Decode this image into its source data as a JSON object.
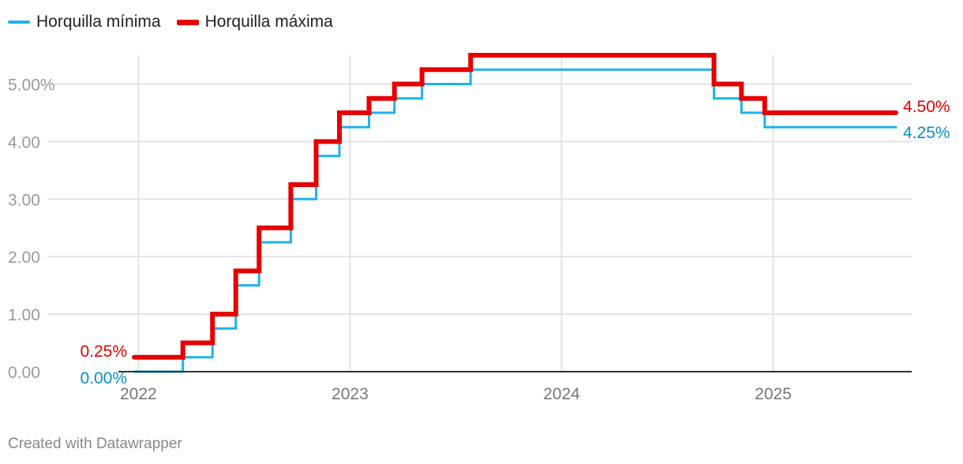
{
  "colors": {
    "min": "#1cb4ea",
    "max": "#e60000",
    "min_label": "#0a8fc8",
    "max_label": "#e60000",
    "grid": "#e3e3e3",
    "axis": "#333333",
    "tick": "#9a9a9a"
  },
  "footer": "Created with Datawrapper",
  "chart_data": {
    "type": "line",
    "step": true,
    "title": "",
    "xlabel": "",
    "ylabel": "",
    "xlim": [
      2021.98,
      2025.58
    ],
    "ylim": [
      0,
      5.5
    ],
    "y_ticks": [
      {
        "value": 0,
        "label": "0.00"
      },
      {
        "value": 1,
        "label": "1.00"
      },
      {
        "value": 2,
        "label": "2.00"
      },
      {
        "value": 3,
        "label": "3.00"
      },
      {
        "value": 4,
        "label": "4.00"
      },
      {
        "value": 5,
        "label": "5.00%"
      }
    ],
    "x_ticks": [
      {
        "value": 2022,
        "label": "2022"
      },
      {
        "value": 2023,
        "label": "2023"
      },
      {
        "value": 2024,
        "label": "2024"
      },
      {
        "value": 2025,
        "label": "2025"
      }
    ],
    "legend_position": "top-left",
    "grid": true,
    "series": [
      {
        "name": "Horquilla mínima",
        "key": "min",
        "start_label": "0.00%",
        "end_label": "4.25%",
        "points": [
          [
            2021.98,
            0.0
          ],
          [
            2022.21,
            0.25
          ],
          [
            2022.35,
            0.75
          ],
          [
            2022.46,
            1.5
          ],
          [
            2022.57,
            2.25
          ],
          [
            2022.72,
            3.0
          ],
          [
            2022.84,
            3.75
          ],
          [
            2022.95,
            4.25
          ],
          [
            2023.09,
            4.5
          ],
          [
            2023.21,
            4.75
          ],
          [
            2023.34,
            5.0
          ],
          [
            2023.57,
            5.25
          ],
          [
            2024.72,
            4.75
          ],
          [
            2024.85,
            4.5
          ],
          [
            2024.96,
            4.25
          ],
          [
            2025.58,
            4.25
          ]
        ]
      },
      {
        "name": "Horquilla máxima",
        "key": "max",
        "start_label": "0.25%",
        "end_label": "4.50%",
        "points": [
          [
            2021.98,
            0.25
          ],
          [
            2022.21,
            0.5
          ],
          [
            2022.35,
            1.0
          ],
          [
            2022.46,
            1.75
          ],
          [
            2022.57,
            2.5
          ],
          [
            2022.72,
            3.25
          ],
          [
            2022.84,
            4.0
          ],
          [
            2022.95,
            4.5
          ],
          [
            2023.09,
            4.75
          ],
          [
            2023.21,
            5.0
          ],
          [
            2023.34,
            5.25
          ],
          [
            2023.57,
            5.5
          ],
          [
            2024.72,
            5.0
          ],
          [
            2024.85,
            4.75
          ],
          [
            2024.96,
            4.5
          ],
          [
            2025.58,
            4.5
          ]
        ]
      }
    ]
  }
}
